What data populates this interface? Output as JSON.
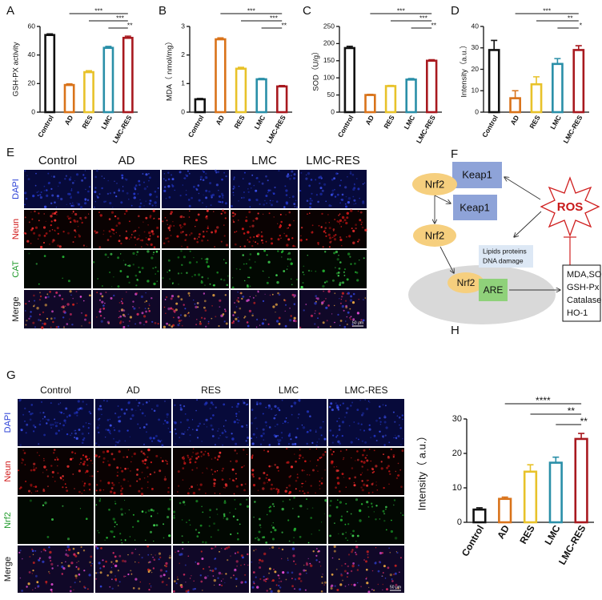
{
  "chart_data": [
    {
      "type": "bar",
      "panel": "A",
      "y_label": "GSH-PX activity",
      "categories": [
        "Control",
        "AD",
        "RES",
        "LMC",
        "LMC-RES"
      ],
      "values": [
        54,
        19,
        28,
        45,
        52
      ],
      "errors": [
        0.8,
        0.8,
        1,
        1,
        1.2
      ],
      "colors": [
        "#111111",
        "#d9731a",
        "#e8c22a",
        "#2a8fa8",
        "#a8191f"
      ],
      "ylim": [
        0,
        60
      ],
      "yticks": [
        0,
        20,
        40,
        60
      ],
      "significance": [
        {
          "from": "AD",
          "to": "LMC-RES",
          "label": "***"
        },
        {
          "from": "RES",
          "to": "LMC-RES",
          "label": "***"
        },
        {
          "from": "LMC",
          "to": "LMC-RES",
          "label": "**"
        }
      ]
    },
    {
      "type": "bar",
      "panel": "B",
      "y_label": "MDA（ nmol/mg）",
      "categories": [
        "Control",
        "AD",
        "RES",
        "LMC",
        "LMC-RES"
      ],
      "values": [
        0.45,
        2.55,
        1.52,
        1.15,
        0.9
      ],
      "errors": [
        0.03,
        0.05,
        0.05,
        0.03,
        0.03
      ],
      "colors": [
        "#111111",
        "#d9731a",
        "#e8c22a",
        "#2a8fa8",
        "#a8191f"
      ],
      "ylim": [
        0,
        3
      ],
      "yticks": [
        0,
        1,
        2,
        3
      ],
      "significance": [
        {
          "from": "AD",
          "to": "LMC-RES",
          "label": "***"
        },
        {
          "from": "RES",
          "to": "LMC-RES",
          "label": "***"
        },
        {
          "from": "LMC",
          "to": "LMC-RES",
          "label": "**"
        }
      ]
    },
    {
      "type": "bar",
      "panel": "C",
      "y_label": "SOD（U/g）",
      "categories": [
        "Control",
        "AD",
        "RES",
        "LMC",
        "LMC-RES"
      ],
      "values": [
        187,
        50,
        76,
        95,
        150
      ],
      "errors": [
        5,
        2,
        2,
        3,
        3
      ],
      "colors": [
        "#111111",
        "#d9731a",
        "#e8c22a",
        "#2a8fa8",
        "#a8191f"
      ],
      "ylim": [
        0,
        250
      ],
      "yticks": [
        0,
        50,
        100,
        150,
        200,
        250
      ],
      "significance": [
        {
          "from": "AD",
          "to": "LMC-RES",
          "label": "***"
        },
        {
          "from": "RES",
          "to": "LMC-RES",
          "label": "***"
        },
        {
          "from": "LMC",
          "to": "LMC-RES",
          "label": "**"
        }
      ]
    },
    {
      "type": "bar",
      "panel": "D",
      "y_label": "Intensity（a.u.）",
      "categories": [
        "Control",
        "AD",
        "RES",
        "LMC",
        "LMC-RES"
      ],
      "values": [
        29,
        6.5,
        13,
        22.5,
        29
      ],
      "errors": [
        4.5,
        3.5,
        3.5,
        2.5,
        2
      ],
      "colors": [
        "#111111",
        "#d9731a",
        "#e8c22a",
        "#2a8fa8",
        "#a8191f"
      ],
      "ylim": [
        0,
        40
      ],
      "yticks": [
        0,
        10,
        20,
        30,
        40
      ],
      "significance": [
        {
          "from": "AD",
          "to": "LMC-RES",
          "label": "***"
        },
        {
          "from": "RES",
          "to": "LMC-RES",
          "label": "**"
        },
        {
          "from": "LMC",
          "to": "LMC-RES",
          "label": "*"
        }
      ]
    },
    {
      "type": "bar",
      "panel": "H",
      "y_label": "Intensity（ a.u.）",
      "categories": [
        "Control",
        "AD",
        "RES",
        "LMC",
        "LMC-RES"
      ],
      "values": [
        3.7,
        6.8,
        14.7,
        17.3,
        24.2
      ],
      "errors": [
        0.5,
        0.5,
        2,
        1.6,
        1.6
      ],
      "colors": [
        "#111111",
        "#d9731a",
        "#e8c22a",
        "#2a8fa8",
        "#a8191f"
      ],
      "ylim": [
        0,
        30
      ],
      "yticks": [
        0,
        10,
        20,
        30
      ],
      "significance": [
        {
          "from": "AD",
          "to": "LMC-RES",
          "label": "****"
        },
        {
          "from": "RES",
          "to": "LMC-RES",
          "label": "**"
        },
        {
          "from": "LMC",
          "to": "LMC-RES",
          "label": "**"
        }
      ]
    }
  ],
  "image_panels": [
    {
      "panel": "E",
      "columns": [
        "Control",
        "AD",
        "RES",
        "LMC",
        "LMC-RES"
      ],
      "rows": [
        "DAPI",
        "Neun",
        "CAT",
        "Merge"
      ],
      "scale_bar": "50 μm"
    },
    {
      "panel": "G",
      "columns": [
        "Control",
        "AD",
        "RES",
        "LMC",
        "LMC-RES"
      ],
      "rows": [
        "DAPI",
        "Neun",
        "Nrf2",
        "Merge"
      ],
      "scale_bar": "50 μm"
    }
  ],
  "diagram": {
    "panel": "F",
    "keap1_top": "Keap1",
    "keap1_released": "Keap1",
    "nrf2_bound": "Nrf2",
    "nrf2_free": "Nrf2",
    "nrf2_nucleus": "Nrf2",
    "ros": "ROS",
    "damage": [
      "Lipids proteins",
      "DNA damage"
    ],
    "are": "ARE",
    "outputs": [
      "MDA,SOD",
      "GSH-Px",
      "Catalase",
      "HO-1"
    ]
  }
}
